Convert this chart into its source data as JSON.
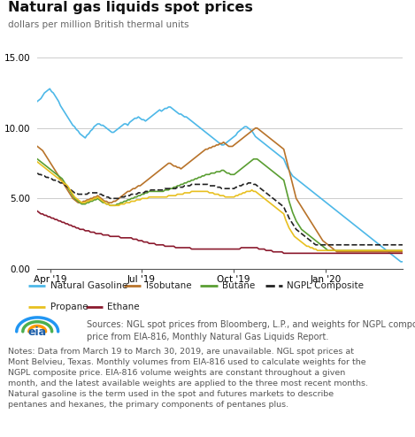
{
  "title": "Natural gas liquids spot prices",
  "subtitle": "dollars per million British thermal units",
  "ylim": [
    0,
    16.0
  ],
  "yticks": [
    0.0,
    5.0,
    10.0,
    15.0
  ],
  "background_color": "#ffffff",
  "legend_bg": "#e8e8e8",
  "series_order": [
    "natural_gasoline",
    "isobutane",
    "butane",
    "ngpl_composite",
    "propane",
    "ethane"
  ],
  "series": {
    "natural_gasoline": {
      "color": "#4db8e8",
      "label": "Natural Gasoline",
      "lw": 1.2,
      "linestyle": "-"
    },
    "isobutane": {
      "color": "#b8732a",
      "label": "Isobutane",
      "lw": 1.2,
      "linestyle": "-"
    },
    "butane": {
      "color": "#5a9e32",
      "label": "Butane",
      "lw": 1.2,
      "linestyle": "-"
    },
    "ngpl_composite": {
      "color": "#222222",
      "label": "NGPL Composite",
      "lw": 1.2,
      "linestyle": "--"
    },
    "propane": {
      "color": "#e8c020",
      "label": "Propane",
      "lw": 1.2,
      "linestyle": "-"
    },
    "ethane": {
      "color": "#8b1a2e",
      "label": "Ethane",
      "lw": 1.2,
      "linestyle": "-"
    }
  },
  "source_text": "Sources: NGL spot prices from Bloomberg, L.P., and weights for NGPL composite\nprice from EIA-816, Monthly Natural Gas Liquids Report.",
  "notes_text": "Notes: Data from March 19 to March 30, 2019, are unavailable. NGL spot prices at\nMont Belvieu, Texas. Monthly volumes from EIA-816 used to calculate weights for the\nNGPL composite price. EIA-816 volume weights are constant throughout a given\nmonth, and the latest available weights are applied to the three most recent months.\nNatural gasoline is the term used in the spot and futures markets to describe\npentanes and hexanes, the primary components of pentanes plus.",
  "natural_gasoline": [
    11.9,
    12.0,
    12.1,
    12.3,
    12.5,
    12.6,
    12.7,
    12.8,
    12.6,
    12.5,
    12.3,
    12.1,
    11.9,
    11.6,
    11.4,
    11.2,
    11.0,
    10.8,
    10.6,
    10.4,
    10.2,
    10.1,
    9.9,
    9.8,
    9.6,
    9.5,
    9.4,
    9.3,
    9.5,
    9.6,
    9.8,
    9.9,
    10.1,
    10.2,
    10.3,
    10.3,
    10.2,
    10.2,
    10.1,
    10.0,
    9.9,
    9.8,
    9.7,
    9.7,
    9.8,
    9.9,
    10.0,
    10.1,
    10.2,
    10.3,
    10.3,
    10.2,
    10.4,
    10.5,
    10.6,
    10.7,
    10.7,
    10.8,
    10.7,
    10.6,
    10.6,
    10.5,
    10.6,
    10.7,
    10.8,
    10.9,
    11.0,
    11.1,
    11.2,
    11.3,
    11.2,
    11.3,
    11.4,
    11.4,
    11.5,
    11.5,
    11.4,
    11.3,
    11.2,
    11.1,
    11.0,
    11.0,
    10.9,
    10.8,
    10.8,
    10.7,
    10.6,
    10.5,
    10.4,
    10.3,
    10.2,
    10.1,
    10.0,
    9.9,
    9.8,
    9.7,
    9.6,
    9.5,
    9.4,
    9.3,
    9.2,
    9.1,
    9.0,
    8.9,
    8.8,
    8.8,
    8.9,
    9.0,
    9.1,
    9.2,
    9.3,
    9.4,
    9.5,
    9.7,
    9.8,
    9.9,
    10.0,
    10.1,
    10.1,
    10.0,
    9.9,
    9.8,
    9.6,
    9.4,
    9.3,
    9.2,
    9.1,
    9.0,
    8.9,
    8.8,
    8.7,
    8.6,
    8.5,
    8.4,
    8.3,
    8.2,
    8.1,
    8.0,
    7.9,
    7.8,
    7.5,
    7.2,
    7.0,
    6.8,
    6.6,
    6.5,
    6.4,
    6.3,
    6.2,
    6.1,
    6.0,
    5.9,
    5.8,
    5.7,
    5.6,
    5.5,
    5.4,
    5.3,
    5.2,
    5.1,
    5.0,
    4.9,
    4.8,
    4.7,
    4.6,
    4.5,
    4.4,
    4.3,
    4.2,
    4.1,
    4.0,
    3.9,
    3.8,
    3.7,
    3.6,
    3.5,
    3.4,
    3.3,
    3.2,
    3.1,
    3.0,
    2.9,
    2.8,
    2.7,
    2.6,
    2.5,
    2.4,
    2.3,
    2.2,
    2.1,
    2.0,
    1.9,
    1.8,
    1.7,
    1.6,
    1.5,
    1.4,
    1.3,
    1.2,
    1.1,
    1.0,
    0.9,
    0.8,
    0.7,
    0.6,
    0.5,
    0.5
  ],
  "isobutane": [
    8.7,
    8.6,
    8.5,
    8.4,
    8.2,
    8.0,
    7.8,
    7.6,
    7.4,
    7.2,
    7.0,
    6.8,
    6.6,
    6.4,
    6.2,
    6.0,
    5.8,
    5.6,
    5.4,
    5.2,
    5.0,
    4.9,
    4.8,
    4.7,
    4.7,
    4.7,
    4.8,
    4.8,
    4.9,
    4.9,
    5.0,
    5.0,
    5.1,
    5.1,
    5.2,
    5.1,
    5.0,
    4.9,
    4.8,
    4.8,
    4.7,
    4.7,
    4.7,
    4.8,
    4.8,
    4.9,
    5.0,
    5.1,
    5.2,
    5.3,
    5.4,
    5.5,
    5.5,
    5.6,
    5.7,
    5.7,
    5.8,
    5.9,
    5.9,
    6.0,
    6.1,
    6.2,
    6.3,
    6.4,
    6.5,
    6.6,
    6.7,
    6.8,
    6.9,
    7.0,
    7.1,
    7.2,
    7.3,
    7.4,
    7.5,
    7.5,
    7.4,
    7.3,
    7.3,
    7.2,
    7.2,
    7.1,
    7.2,
    7.3,
    7.4,
    7.5,
    7.6,
    7.7,
    7.8,
    7.9,
    8.0,
    8.1,
    8.2,
    8.3,
    8.4,
    8.5,
    8.5,
    8.6,
    8.6,
    8.7,
    8.7,
    8.8,
    8.8,
    8.9,
    8.9,
    9.0,
    8.9,
    8.8,
    8.7,
    8.7,
    8.7,
    8.8,
    8.9,
    9.0,
    9.1,
    9.2,
    9.3,
    9.4,
    9.5,
    9.6,
    9.7,
    9.8,
    9.9,
    10.0,
    10.0,
    9.9,
    9.8,
    9.7,
    9.6,
    9.5,
    9.4,
    9.3,
    9.2,
    9.1,
    9.0,
    8.9,
    8.8,
    8.7,
    8.6,
    8.5,
    8.0,
    7.5,
    7.0,
    6.5,
    6.0,
    5.5,
    5.0,
    4.8,
    4.6,
    4.4,
    4.2,
    4.0,
    3.8,
    3.6,
    3.4,
    3.2,
    3.0,
    2.8,
    2.6,
    2.4,
    2.2,
    2.0,
    1.9,
    1.8,
    1.7,
    1.6,
    1.5,
    1.4,
    1.3,
    1.2,
    1.2,
    1.2,
    1.2,
    1.2,
    1.2,
    1.2,
    1.2,
    1.2,
    1.2,
    1.2,
    1.2,
    1.2,
    1.2,
    1.2,
    1.2,
    1.2,
    1.2,
    1.2,
    1.2,
    1.2,
    1.2,
    1.2,
    1.2,
    1.2,
    1.2,
    1.2,
    1.2,
    1.2,
    1.2,
    1.2,
    1.2,
    1.2,
    1.2,
    1.2,
    1.2,
    1.2,
    1.2
  ],
  "butane": [
    7.8,
    7.7,
    7.6,
    7.5,
    7.4,
    7.3,
    7.2,
    7.1,
    7.0,
    6.9,
    6.8,
    6.7,
    6.6,
    6.5,
    6.4,
    6.2,
    6.0,
    5.8,
    5.6,
    5.4,
    5.2,
    5.0,
    4.9,
    4.8,
    4.7,
    4.6,
    4.6,
    4.6,
    4.7,
    4.7,
    4.8,
    4.8,
    4.9,
    4.9,
    5.0,
    4.9,
    4.8,
    4.7,
    4.7,
    4.6,
    4.6,
    4.5,
    4.5,
    4.5,
    4.5,
    4.6,
    4.6,
    4.7,
    4.7,
    4.8,
    4.8,
    4.9,
    4.9,
    5.0,
    5.0,
    5.1,
    5.1,
    5.2,
    5.2,
    5.3,
    5.3,
    5.4,
    5.4,
    5.5,
    5.5,
    5.5,
    5.5,
    5.5,
    5.5,
    5.5,
    5.5,
    5.5,
    5.6,
    5.6,
    5.6,
    5.7,
    5.7,
    5.8,
    5.8,
    5.9,
    5.9,
    6.0,
    6.0,
    6.1,
    6.1,
    6.2,
    6.2,
    6.3,
    6.3,
    6.4,
    6.4,
    6.5,
    6.5,
    6.6,
    6.6,
    6.7,
    6.7,
    6.7,
    6.8,
    6.8,
    6.8,
    6.9,
    6.9,
    6.9,
    7.0,
    7.0,
    6.9,
    6.8,
    6.8,
    6.7,
    6.7,
    6.7,
    6.8,
    6.9,
    7.0,
    7.1,
    7.2,
    7.3,
    7.4,
    7.5,
    7.6,
    7.7,
    7.8,
    7.8,
    7.8,
    7.7,
    7.6,
    7.5,
    7.4,
    7.3,
    7.2,
    7.1,
    7.0,
    6.9,
    6.8,
    6.7,
    6.6,
    6.5,
    6.4,
    6.3,
    5.8,
    5.3,
    4.8,
    4.4,
    4.0,
    3.7,
    3.4,
    3.2,
    3.0,
    2.8,
    2.7,
    2.6,
    2.5,
    2.4,
    2.3,
    2.2,
    2.1,
    2.0,
    1.9,
    1.8,
    1.7,
    1.6,
    1.5,
    1.4,
    1.3,
    1.3,
    1.3,
    1.3,
    1.3,
    1.3,
    1.3,
    1.3,
    1.3,
    1.3,
    1.3,
    1.3,
    1.3,
    1.3,
    1.3,
    1.3,
    1.3,
    1.3,
    1.3,
    1.3,
    1.3,
    1.3,
    1.3,
    1.3,
    1.3,
    1.3,
    1.3,
    1.3,
    1.3,
    1.3,
    1.3,
    1.3,
    1.3,
    1.3,
    1.3,
    1.3,
    1.3,
    1.3,
    1.3,
    1.3,
    1.3,
    1.3,
    1.3
  ],
  "ngpl_composite": [
    6.8,
    6.7,
    6.7,
    6.6,
    6.6,
    6.5,
    6.5,
    6.4,
    6.4,
    6.3,
    6.3,
    6.2,
    6.2,
    6.1,
    6.1,
    6.0,
    5.9,
    5.8,
    5.7,
    5.6,
    5.5,
    5.4,
    5.4,
    5.3,
    5.3,
    5.3,
    5.3,
    5.3,
    5.3,
    5.4,
    5.4,
    5.4,
    5.4,
    5.4,
    5.4,
    5.3,
    5.3,
    5.2,
    5.2,
    5.1,
    5.1,
    5.0,
    5.0,
    5.0,
    5.0,
    5.0,
    5.0,
    5.1,
    5.1,
    5.1,
    5.2,
    5.2,
    5.2,
    5.3,
    5.3,
    5.3,
    5.3,
    5.4,
    5.4,
    5.4,
    5.4,
    5.5,
    5.5,
    5.5,
    5.6,
    5.6,
    5.6,
    5.6,
    5.6,
    5.6,
    5.6,
    5.6,
    5.7,
    5.7,
    5.7,
    5.7,
    5.7,
    5.7,
    5.7,
    5.8,
    5.8,
    5.8,
    5.8,
    5.9,
    5.9,
    5.9,
    5.9,
    6.0,
    6.0,
    6.0,
    6.0,
    6.0,
    6.0,
    6.0,
    6.0,
    6.0,
    6.0,
    5.9,
    5.9,
    5.9,
    5.9,
    5.8,
    5.8,
    5.8,
    5.7,
    5.7,
    5.7,
    5.7,
    5.7,
    5.7,
    5.7,
    5.7,
    5.8,
    5.8,
    5.9,
    5.9,
    6.0,
    6.0,
    6.0,
    6.1,
    6.1,
    6.1,
    6.0,
    6.0,
    5.9,
    5.8,
    5.7,
    5.6,
    5.5,
    5.4,
    5.3,
    5.2,
    5.1,
    5.0,
    4.9,
    4.8,
    4.7,
    4.6,
    4.5,
    4.4,
    4.1,
    3.9,
    3.6,
    3.4,
    3.2,
    3.0,
    2.8,
    2.7,
    2.6,
    2.5,
    2.4,
    2.3,
    2.2,
    2.1,
    2.0,
    1.9,
    1.8,
    1.7,
    1.7,
    1.7,
    1.7,
    1.7,
    1.7,
    1.7,
    1.7,
    1.7,
    1.7,
    1.7,
    1.7,
    1.7,
    1.7,
    1.7,
    1.7,
    1.7,
    1.7,
    1.7,
    1.7,
    1.7,
    1.7,
    1.7,
    1.7,
    1.7,
    1.7,
    1.7,
    1.7,
    1.7,
    1.7,
    1.7,
    1.7,
    1.7,
    1.7,
    1.7,
    1.7,
    1.7,
    1.7,
    1.7,
    1.7,
    1.7,
    1.7,
    1.7,
    1.7,
    1.7,
    1.7,
    1.7,
    1.7,
    1.7,
    1.7
  ],
  "propane": [
    7.6,
    7.5,
    7.4,
    7.3,
    7.2,
    7.1,
    7.0,
    6.9,
    6.8,
    6.7,
    6.6,
    6.5,
    6.4,
    6.3,
    6.2,
    6.1,
    6.0,
    5.9,
    5.7,
    5.5,
    5.3,
    5.1,
    5.0,
    4.9,
    4.8,
    4.7,
    4.7,
    4.7,
    4.8,
    4.8,
    4.9,
    4.9,
    5.0,
    5.0,
    5.1,
    5.0,
    4.9,
    4.8,
    4.7,
    4.6,
    4.6,
    4.5,
    4.5,
    4.5,
    4.5,
    4.5,
    4.5,
    4.6,
    4.6,
    4.6,
    4.7,
    4.7,
    4.7,
    4.8,
    4.8,
    4.8,
    4.9,
    4.9,
    4.9,
    5.0,
    5.0,
    5.0,
    5.0,
    5.1,
    5.1,
    5.1,
    5.1,
    5.1,
    5.1,
    5.1,
    5.1,
    5.1,
    5.1,
    5.1,
    5.2,
    5.2,
    5.2,
    5.2,
    5.2,
    5.3,
    5.3,
    5.3,
    5.3,
    5.4,
    5.4,
    5.4,
    5.4,
    5.5,
    5.5,
    5.5,
    5.5,
    5.5,
    5.5,
    5.5,
    5.5,
    5.5,
    5.5,
    5.4,
    5.4,
    5.4,
    5.3,
    5.3,
    5.3,
    5.2,
    5.2,
    5.2,
    5.1,
    5.1,
    5.1,
    5.1,
    5.1,
    5.1,
    5.2,
    5.2,
    5.3,
    5.3,
    5.4,
    5.4,
    5.5,
    5.5,
    5.5,
    5.6,
    5.5,
    5.5,
    5.4,
    5.3,
    5.2,
    5.1,
    5.0,
    4.9,
    4.8,
    4.7,
    4.6,
    4.5,
    4.4,
    4.3,
    4.2,
    4.1,
    4.0,
    3.9,
    3.5,
    3.2,
    2.9,
    2.7,
    2.5,
    2.3,
    2.2,
    2.1,
    2.0,
    1.9,
    1.8,
    1.7,
    1.6,
    1.6,
    1.5,
    1.5,
    1.4,
    1.4,
    1.3,
    1.3,
    1.3,
    1.3,
    1.3,
    1.3,
    1.3,
    1.3,
    1.3,
    1.3,
    1.3,
    1.3,
    1.3,
    1.3,
    1.3,
    1.3,
    1.3,
    1.3,
    1.3,
    1.3,
    1.3,
    1.3,
    1.3,
    1.3,
    1.3,
    1.3,
    1.3,
    1.3,
    1.3,
    1.3,
    1.3,
    1.3,
    1.3,
    1.3,
    1.3,
    1.3,
    1.3,
    1.3,
    1.3,
    1.3,
    1.3,
    1.3,
    1.3,
    1.3,
    1.3,
    1.3,
    1.3,
    1.3,
    1.3
  ],
  "ethane": [
    4.1,
    4.0,
    3.9,
    3.9,
    3.8,
    3.8,
    3.7,
    3.7,
    3.6,
    3.6,
    3.5,
    3.5,
    3.4,
    3.4,
    3.3,
    3.3,
    3.2,
    3.2,
    3.1,
    3.1,
    3.0,
    3.0,
    2.9,
    2.9,
    2.8,
    2.8,
    2.8,
    2.7,
    2.7,
    2.7,
    2.6,
    2.6,
    2.6,
    2.5,
    2.5,
    2.5,
    2.5,
    2.4,
    2.4,
    2.4,
    2.4,
    2.3,
    2.3,
    2.3,
    2.3,
    2.3,
    2.3,
    2.2,
    2.2,
    2.2,
    2.2,
    2.2,
    2.2,
    2.2,
    2.1,
    2.1,
    2.1,
    2.0,
    2.0,
    2.0,
    1.9,
    1.9,
    1.9,
    1.8,
    1.8,
    1.8,
    1.8,
    1.7,
    1.7,
    1.7,
    1.7,
    1.7,
    1.6,
    1.6,
    1.6,
    1.6,
    1.6,
    1.6,
    1.5,
    1.5,
    1.5,
    1.5,
    1.5,
    1.5,
    1.5,
    1.5,
    1.5,
    1.4,
    1.4,
    1.4,
    1.4,
    1.4,
    1.4,
    1.4,
    1.4,
    1.4,
    1.4,
    1.4,
    1.4,
    1.4,
    1.4,
    1.4,
    1.4,
    1.4,
    1.4,
    1.4,
    1.4,
    1.4,
    1.4,
    1.4,
    1.4,
    1.4,
    1.4,
    1.4,
    1.4,
    1.5,
    1.5,
    1.5,
    1.5,
    1.5,
    1.5,
    1.5,
    1.5,
    1.5,
    1.5,
    1.4,
    1.4,
    1.4,
    1.4,
    1.3,
    1.3,
    1.3,
    1.3,
    1.2,
    1.2,
    1.2,
    1.2,
    1.2,
    1.2,
    1.1,
    1.1,
    1.1,
    1.1,
    1.1,
    1.1,
    1.1,
    1.1,
    1.1,
    1.1,
    1.1,
    1.1,
    1.1,
    1.1,
    1.1,
    1.1,
    1.1,
    1.1,
    1.1,
    1.1,
    1.1,
    1.1,
    1.1,
    1.1,
    1.1,
    1.1,
    1.1,
    1.1,
    1.1,
    1.1,
    1.1,
    1.1,
    1.1,
    1.1,
    1.1,
    1.1,
    1.1,
    1.1,
    1.1,
    1.1,
    1.1,
    1.1,
    1.1,
    1.1,
    1.1,
    1.1,
    1.1,
    1.1,
    1.1,
    1.1,
    1.1,
    1.1,
    1.1,
    1.1,
    1.1,
    1.1,
    1.1,
    1.1,
    1.1,
    1.1,
    1.1,
    1.1,
    1.1,
    1.1,
    1.1,
    1.1,
    1.1,
    1.1
  ]
}
